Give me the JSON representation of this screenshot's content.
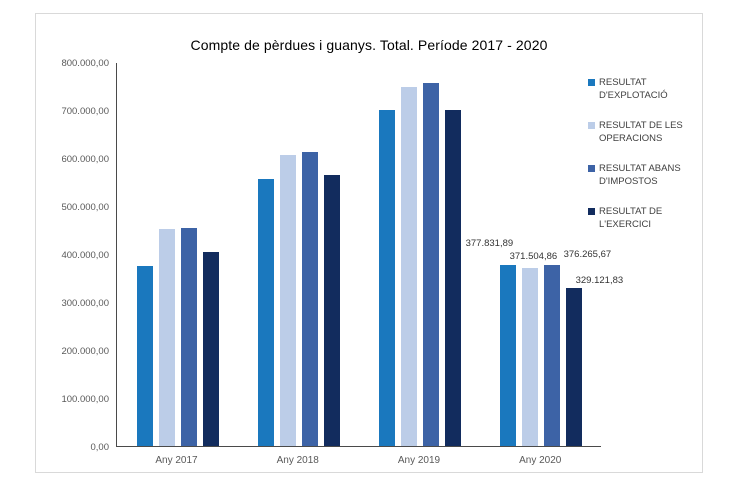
{
  "chart_data": {
    "type": "bar",
    "title": "Compte de pèrdues i guanys. Total. Període 2017 - 2020",
    "categories": [
      "Any 2017",
      "Any 2018",
      "Any 2019",
      "Any 2020"
    ],
    "series": [
      {
        "name": "RESULTAT D'EXPLOTACIÓ",
        "color": "#1A78BE",
        "values": [
          375000,
          556000,
          701000,
          377831.89
        ]
      },
      {
        "name": "RESULTAT DE LES OPERACIONS",
        "color": "#BCCDE8",
        "values": [
          453000,
          607000,
          748000,
          371504.86
        ]
      },
      {
        "name": "RESULTAT ABANS D'IMPOSTOS",
        "color": "#3D63A6",
        "values": [
          455000,
          612000,
          756000,
          376265.67
        ]
      },
      {
        "name": "RESULTAT DE L'EXERCICI",
        "color": "#122C5E",
        "values": [
          404000,
          564000,
          699000,
          329121.83
        ]
      }
    ],
    "y_axis": {
      "min": 0,
      "max": 800000,
      "step": 100000,
      "tick_labels": [
        "800.000,00",
        "700.000,00",
        "600.000,00",
        "500.000,00",
        "400.000,00",
        "300.000,00",
        "200.000,00",
        "100.000,00",
        "0,00"
      ]
    },
    "data_labels": {
      "category": "Any 2020",
      "values": [
        "377.831,89",
        "371.504,86",
        "376.265,67",
        "329.121,83"
      ]
    },
    "legend_position": "right",
    "grid": false,
    "xlabel": "",
    "ylabel": ""
  }
}
